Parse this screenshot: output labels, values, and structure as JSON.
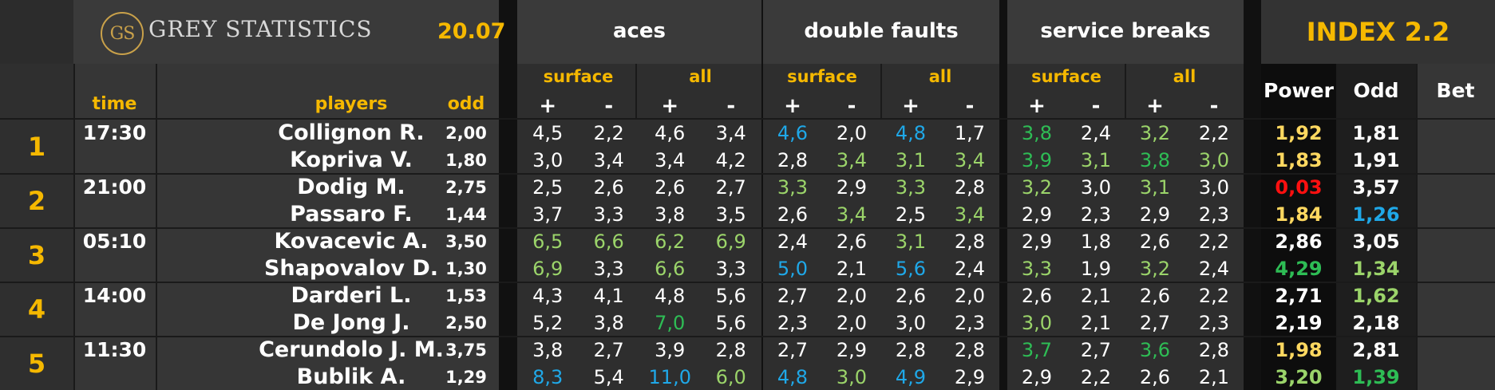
{
  "brand": {
    "logo": "GS",
    "name": "GREY STATISTICS",
    "date": "20.07"
  },
  "groups": {
    "aces": "aces",
    "double_faults": "double faults",
    "service_breaks": "service breaks"
  },
  "index_title": "INDEX 2.2",
  "headers": {
    "time": "time",
    "players": "players",
    "odd": "odd",
    "surface": "surface",
    "all": "all",
    "plus": "+",
    "minus": "-",
    "power": "Power",
    "odd2": "Odd",
    "bet": "Bet"
  },
  "colors": {
    "white": "#ffffff",
    "blue": "#1fa8e8",
    "lgreen": "#9bd46a",
    "dgreen": "#2ebd55",
    "yellow": "#ffd860",
    "red": "#ff1010",
    "accent": "#f5b800"
  },
  "matches": [
    {
      "index": "1",
      "time": "17:30",
      "players": [
        {
          "name": "Collignon R.",
          "odd": "2,00",
          "stats": [
            [
              "4,5",
              "white"
            ],
            [
              "2,2",
              "white"
            ],
            [
              "4,6",
              "white"
            ],
            [
              "3,4",
              "white"
            ],
            [
              "4,6",
              "blue"
            ],
            [
              "2,0",
              "white"
            ],
            [
              "4,8",
              "blue"
            ],
            [
              "1,7",
              "white"
            ],
            [
              "3,8",
              "dgreen"
            ],
            [
              "2,4",
              "white"
            ],
            [
              "3,2",
              "lgreen"
            ],
            [
              "2,2",
              "white"
            ]
          ],
          "power": [
            "1,92",
            "yellow"
          ],
          "odd2": [
            "1,81",
            "white"
          ]
        },
        {
          "name": "Kopriva V.",
          "odd": "1,80",
          "stats": [
            [
              "3,0",
              "white"
            ],
            [
              "3,4",
              "white"
            ],
            [
              "3,4",
              "white"
            ],
            [
              "4,2",
              "white"
            ],
            [
              "2,8",
              "white"
            ],
            [
              "3,4",
              "lgreen"
            ],
            [
              "3,1",
              "lgreen"
            ],
            [
              "3,4",
              "lgreen"
            ],
            [
              "3,9",
              "dgreen"
            ],
            [
              "3,1",
              "lgreen"
            ],
            [
              "3,8",
              "dgreen"
            ],
            [
              "3,0",
              "lgreen"
            ]
          ],
          "power": [
            "1,83",
            "yellow"
          ],
          "odd2": [
            "1,91",
            "white"
          ]
        }
      ]
    },
    {
      "index": "2",
      "time": "21:00",
      "players": [
        {
          "name": "Dodig M.",
          "odd": "2,75",
          "stats": [
            [
              "2,5",
              "white"
            ],
            [
              "2,6",
              "white"
            ],
            [
              "2,6",
              "white"
            ],
            [
              "2,7",
              "white"
            ],
            [
              "3,3",
              "lgreen"
            ],
            [
              "2,9",
              "white"
            ],
            [
              "3,3",
              "lgreen"
            ],
            [
              "2,8",
              "white"
            ],
            [
              "3,2",
              "lgreen"
            ],
            [
              "3,0",
              "white"
            ],
            [
              "3,1",
              "lgreen"
            ],
            [
              "3,0",
              "white"
            ]
          ],
          "power": [
            "0,03",
            "red"
          ],
          "odd2": [
            "3,57",
            "white"
          ]
        },
        {
          "name": "Passaro F.",
          "odd": "1,44",
          "stats": [
            [
              "3,7",
              "white"
            ],
            [
              "3,3",
              "white"
            ],
            [
              "3,8",
              "white"
            ],
            [
              "3,5",
              "white"
            ],
            [
              "2,6",
              "white"
            ],
            [
              "3,4",
              "lgreen"
            ],
            [
              "2,5",
              "white"
            ],
            [
              "3,4",
              "lgreen"
            ],
            [
              "2,9",
              "white"
            ],
            [
              "2,3",
              "white"
            ],
            [
              "2,9",
              "white"
            ],
            [
              "2,3",
              "white"
            ]
          ],
          "power": [
            "1,84",
            "yellow"
          ],
          "odd2": [
            "1,26",
            "blue"
          ]
        }
      ]
    },
    {
      "index": "3",
      "time": "05:10",
      "players": [
        {
          "name": "Kovacevic A.",
          "odd": "3,50",
          "stats": [
            [
              "6,5",
              "lgreen"
            ],
            [
              "6,6",
              "lgreen"
            ],
            [
              "6,2",
              "lgreen"
            ],
            [
              "6,9",
              "lgreen"
            ],
            [
              "2,4",
              "white"
            ],
            [
              "2,6",
              "white"
            ],
            [
              "3,1",
              "lgreen"
            ],
            [
              "2,8",
              "white"
            ],
            [
              "2,9",
              "white"
            ],
            [
              "1,8",
              "white"
            ],
            [
              "2,6",
              "white"
            ],
            [
              "2,2",
              "white"
            ]
          ],
          "power": [
            "2,86",
            "white"
          ],
          "odd2": [
            "3,05",
            "white"
          ]
        },
        {
          "name": "Shapovalov D.",
          "odd": "1,30",
          "stats": [
            [
              "6,9",
              "lgreen"
            ],
            [
              "3,3",
              "white"
            ],
            [
              "6,6",
              "lgreen"
            ],
            [
              "3,3",
              "white"
            ],
            [
              "5,0",
              "blue"
            ],
            [
              "2,1",
              "white"
            ],
            [
              "5,6",
              "blue"
            ],
            [
              "2,4",
              "white"
            ],
            [
              "3,3",
              "lgreen"
            ],
            [
              "1,9",
              "white"
            ],
            [
              "3,2",
              "lgreen"
            ],
            [
              "2,4",
              "white"
            ]
          ],
          "power": [
            "4,29",
            "dgreen"
          ],
          "odd2": [
            "1,34",
            "lgreen"
          ]
        }
      ]
    },
    {
      "index": "4",
      "time": "14:00",
      "players": [
        {
          "name": "Darderi L.",
          "odd": "1,53",
          "stats": [
            [
              "4,3",
              "white"
            ],
            [
              "4,1",
              "white"
            ],
            [
              "4,8",
              "white"
            ],
            [
              "5,6",
              "white"
            ],
            [
              "2,7",
              "white"
            ],
            [
              "2,0",
              "white"
            ],
            [
              "2,6",
              "white"
            ],
            [
              "2,0",
              "white"
            ],
            [
              "2,6",
              "white"
            ],
            [
              "2,1",
              "white"
            ],
            [
              "2,6",
              "white"
            ],
            [
              "2,2",
              "white"
            ]
          ],
          "power": [
            "2,71",
            "white"
          ],
          "odd2": [
            "1,62",
            "lgreen"
          ]
        },
        {
          "name": "De Jong J.",
          "odd": "2,50",
          "stats": [
            [
              "5,2",
              "white"
            ],
            [
              "3,8",
              "white"
            ],
            [
              "7,0",
              "dgreen"
            ],
            [
              "5,6",
              "white"
            ],
            [
              "2,3",
              "white"
            ],
            [
              "2,0",
              "white"
            ],
            [
              "3,0",
              "white"
            ],
            [
              "2,3",
              "white"
            ],
            [
              "3,0",
              "lgreen"
            ],
            [
              "2,1",
              "white"
            ],
            [
              "2,7",
              "white"
            ],
            [
              "2,3",
              "white"
            ]
          ],
          "power": [
            "2,19",
            "white"
          ],
          "odd2": [
            "2,18",
            "white"
          ]
        }
      ]
    },
    {
      "index": "5",
      "time": "11:30",
      "players": [
        {
          "name": "Cerundolo J. M.",
          "odd": "3,75",
          "stats": [
            [
              "3,8",
              "white"
            ],
            [
              "2,7",
              "white"
            ],
            [
              "3,9",
              "white"
            ],
            [
              "2,8",
              "white"
            ],
            [
              "2,7",
              "white"
            ],
            [
              "2,9",
              "white"
            ],
            [
              "2,8",
              "white"
            ],
            [
              "2,8",
              "white"
            ],
            [
              "3,7",
              "dgreen"
            ],
            [
              "2,7",
              "white"
            ],
            [
              "3,6",
              "dgreen"
            ],
            [
              "2,8",
              "white"
            ]
          ],
          "power": [
            "1,98",
            "yellow"
          ],
          "odd2": [
            "2,81",
            "white"
          ]
        },
        {
          "name": "Bublik A.",
          "odd": "1,29",
          "stats": [
            [
              "8,3",
              "blue"
            ],
            [
              "5,4",
              "white"
            ],
            [
              "11,0",
              "blue"
            ],
            [
              "6,0",
              "lgreen"
            ],
            [
              "4,8",
              "blue"
            ],
            [
              "3,0",
              "lgreen"
            ],
            [
              "4,9",
              "blue"
            ],
            [
              "2,9",
              "white"
            ],
            [
              "2,9",
              "white"
            ],
            [
              "2,2",
              "white"
            ],
            [
              "2,6",
              "white"
            ],
            [
              "2,1",
              "white"
            ]
          ],
          "power": [
            "3,20",
            "lgreen"
          ],
          "odd2": [
            "1,39",
            "dgreen"
          ]
        }
      ]
    }
  ]
}
